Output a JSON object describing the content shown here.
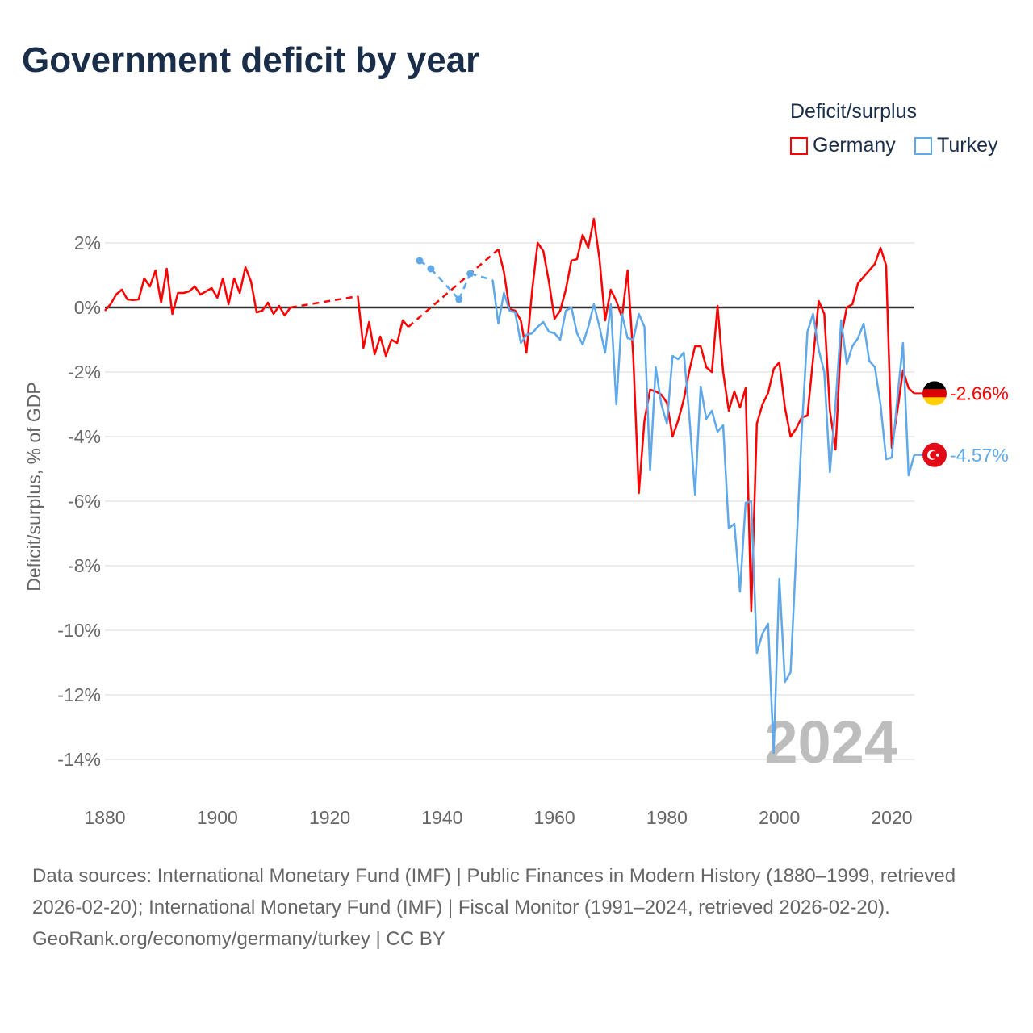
{
  "title": "Government deficit by year",
  "legend": {
    "title": "Deficit/surplus",
    "items": [
      {
        "name": "Germany",
        "color": "#ff0000"
      },
      {
        "name": "Turkey",
        "color": "#5fa8ea"
      }
    ]
  },
  "footer": {
    "sources": "Data sources: International Monetary Fund (IMF) | Public Finances in Modern History (1880–1999, retrieved 2026-02-20); International Monetary Fund (IMF) | Fiscal Monitor (1991–2024, retrieved 2026-02-20).",
    "attribution": "GeoRank.org/economy/germany/turkey | CC BY"
  },
  "chart_data": {
    "type": "line",
    "title": "Government deficit by year",
    "ylabel": "Deficit/surplus, % of GDP",
    "xlabel": "",
    "xlim": [
      1880,
      2024
    ],
    "ylim": [
      -14,
      2
    ],
    "xticks": [
      "1880",
      "1900",
      "1920",
      "1940",
      "1960",
      "1980",
      "2000",
      "2020"
    ],
    "yticks": [
      "2%",
      "0%",
      "-2%",
      "-4%",
      "-6%",
      "-8%",
      "-10%",
      "-12%",
      "-14%"
    ],
    "year_watermark": "2024",
    "end_labels": {
      "Germany": "-2.66%",
      "Turkey": "-4.57%"
    },
    "series": [
      {
        "name": "Germany",
        "color": "#ff0000",
        "points": [
          [
            1880,
            -0.1
          ],
          [
            1881,
            0.1
          ],
          [
            1882,
            0.4
          ],
          [
            1883,
            0.55
          ],
          [
            1884,
            0.25
          ],
          [
            1885,
            0.23
          ],
          [
            1886,
            0.25
          ],
          [
            1887,
            0.9
          ],
          [
            1888,
            0.65
          ],
          [
            1889,
            1.15
          ],
          [
            1890,
            0.15
          ],
          [
            1891,
            1.2
          ],
          [
            1892,
            -0.2
          ],
          [
            1893,
            0.45
          ],
          [
            1894,
            0.45
          ],
          [
            1895,
            0.5
          ],
          [
            1896,
            0.65
          ],
          [
            1897,
            0.4
          ],
          [
            1898,
            0.5
          ],
          [
            1899,
            0.6
          ],
          [
            1900,
            0.3
          ],
          [
            1901,
            0.9
          ],
          [
            1902,
            0.1
          ],
          [
            1903,
            0.9
          ],
          [
            1904,
            0.45
          ],
          [
            1905,
            1.25
          ],
          [
            1906,
            0.8
          ],
          [
            1907,
            -0.15
          ],
          [
            1908,
            -0.1
          ],
          [
            1909,
            0.15
          ],
          [
            1910,
            -0.2
          ],
          [
            1911,
            0.05
          ],
          [
            1912,
            -0.25
          ],
          [
            1913,
            0.0
          ],
          [
            1925,
            0.35
          ],
          [
            1926,
            -1.25
          ],
          [
            1927,
            -0.45
          ],
          [
            1928,
            -1.45
          ],
          [
            1929,
            -0.9
          ],
          [
            1930,
            -1.5
          ],
          [
            1931,
            -1.0
          ],
          [
            1932,
            -1.1
          ],
          [
            1933,
            -0.4
          ],
          [
            1934,
            -0.6
          ],
          [
            1950,
            1.8
          ],
          [
            1951,
            1.1
          ],
          [
            1952,
            -0.05
          ],
          [
            1953,
            -0.1
          ],
          [
            1954,
            -0.4
          ],
          [
            1955,
            -1.4
          ],
          [
            1956,
            0.5
          ],
          [
            1957,
            2.0
          ],
          [
            1958,
            1.75
          ],
          [
            1959,
            0.8
          ],
          [
            1960,
            -0.35
          ],
          [
            1961,
            -0.1
          ],
          [
            1962,
            0.55
          ],
          [
            1963,
            1.45
          ],
          [
            1964,
            1.5
          ],
          [
            1965,
            2.25
          ],
          [
            1966,
            1.85
          ],
          [
            1967,
            2.75
          ],
          [
            1968,
            1.5
          ],
          [
            1969,
            -0.4
          ],
          [
            1970,
            0.55
          ],
          [
            1971,
            0.2
          ],
          [
            1972,
            -0.3
          ],
          [
            1973,
            1.15
          ],
          [
            1974,
            -1.5
          ],
          [
            1975,
            -5.75
          ],
          [
            1976,
            -3.5
          ],
          [
            1977,
            -2.55
          ],
          [
            1978,
            -2.6
          ],
          [
            1979,
            -2.7
          ],
          [
            1980,
            -2.95
          ],
          [
            1981,
            -4.0
          ],
          [
            1982,
            -3.5
          ],
          [
            1983,
            -2.85
          ],
          [
            1984,
            -1.95
          ],
          [
            1985,
            -1.2
          ],
          [
            1986,
            -1.2
          ],
          [
            1987,
            -1.85
          ],
          [
            1988,
            -2.0
          ],
          [
            1989,
            0.05
          ],
          [
            1990,
            -2.0
          ],
          [
            1991,
            -3.2
          ],
          [
            1992,
            -2.6
          ],
          [
            1993,
            -3.1
          ],
          [
            1994,
            -2.5
          ],
          [
            1995,
            -9.4
          ],
          [
            1996,
            -3.6
          ],
          [
            1997,
            -3.0
          ],
          [
            1998,
            -2.65
          ],
          [
            1999,
            -1.9
          ],
          [
            2000,
            -1.7
          ],
          [
            2001,
            -3.1
          ],
          [
            2002,
            -4.0
          ],
          [
            2003,
            -3.75
          ],
          [
            2004,
            -3.4
          ],
          [
            2005,
            -3.35
          ],
          [
            2006,
            -1.6
          ],
          [
            2007,
            0.2
          ],
          [
            2008,
            -0.2
          ],
          [
            2009,
            -3.2
          ],
          [
            2010,
            -4.4
          ],
          [
            2011,
            -0.9
          ],
          [
            2012,
            0.0
          ],
          [
            2013,
            0.1
          ],
          [
            2014,
            0.75
          ],
          [
            2015,
            0.95
          ],
          [
            2016,
            1.15
          ],
          [
            2017,
            1.35
          ],
          [
            2018,
            1.85
          ],
          [
            2019,
            1.3
          ],
          [
            2020,
            -4.35
          ],
          [
            2021,
            -3.2
          ],
          [
            2022,
            -1.95
          ],
          [
            2023,
            -2.5
          ],
          [
            2024,
            -2.66
          ]
        ]
      },
      {
        "name": "Turkey",
        "color": "#5fa8ea",
        "points": [
          [
            1936,
            1.45
          ],
          [
            1938,
            1.2
          ],
          [
            1943,
            0.25
          ],
          [
            1945,
            1.05
          ],
          [
            1949,
            0.85
          ],
          [
            1950,
            -0.5
          ],
          [
            1951,
            0.45
          ],
          [
            1952,
            -0.1
          ],
          [
            1953,
            -0.15
          ],
          [
            1954,
            -1.1
          ],
          [
            1955,
            -0.85
          ],
          [
            1956,
            -0.8
          ],
          [
            1957,
            -0.6
          ],
          [
            1958,
            -0.45
          ],
          [
            1959,
            -0.75
          ],
          [
            1960,
            -0.8
          ],
          [
            1961,
            -1.0
          ],
          [
            1962,
            -0.1
          ],
          [
            1963,
            0.0
          ],
          [
            1964,
            -0.8
          ],
          [
            1965,
            -1.15
          ],
          [
            1966,
            -0.6
          ],
          [
            1967,
            0.1
          ],
          [
            1968,
            -0.6
          ],
          [
            1969,
            -1.4
          ],
          [
            1970,
            0.1
          ],
          [
            1971,
            -3.0
          ],
          [
            1972,
            -0.2
          ],
          [
            1973,
            -0.95
          ],
          [
            1974,
            -1.0
          ],
          [
            1975,
            -0.2
          ],
          [
            1976,
            -0.6
          ],
          [
            1977,
            -5.05
          ],
          [
            1978,
            -1.85
          ],
          [
            1979,
            -3.0
          ],
          [
            1980,
            -3.6
          ],
          [
            1981,
            -1.5
          ],
          [
            1982,
            -1.6
          ],
          [
            1983,
            -1.4
          ],
          [
            1984,
            -3.4
          ],
          [
            1985,
            -5.8
          ],
          [
            1986,
            -2.45
          ],
          [
            1987,
            -3.45
          ],
          [
            1988,
            -3.2
          ],
          [
            1989,
            -3.85
          ],
          [
            1990,
            -3.65
          ],
          [
            1991,
            -6.85
          ],
          [
            1992,
            -6.7
          ],
          [
            1993,
            -8.8
          ],
          [
            1994,
            -6.05
          ],
          [
            1995,
            -6.0
          ],
          [
            1996,
            -10.7
          ],
          [
            1997,
            -10.1
          ],
          [
            1998,
            -9.8
          ],
          [
            1999,
            -13.8
          ],
          [
            2000,
            -8.4
          ],
          [
            2001,
            -11.6
          ],
          [
            2002,
            -11.3
          ],
          [
            2003,
            -7.6
          ],
          [
            2004,
            -3.8
          ],
          [
            2005,
            -0.75
          ],
          [
            2006,
            -0.2
          ],
          [
            2007,
            -1.3
          ],
          [
            2008,
            -2.0
          ],
          [
            2009,
            -5.1
          ],
          [
            2010,
            -3.0
          ],
          [
            2011,
            -0.4
          ],
          [
            2012,
            -1.75
          ],
          [
            2013,
            -1.2
          ],
          [
            2014,
            -0.95
          ],
          [
            2015,
            -0.5
          ],
          [
            2016,
            -1.65
          ],
          [
            2017,
            -1.85
          ],
          [
            2018,
            -3.0
          ],
          [
            2019,
            -4.7
          ],
          [
            2020,
            -4.65
          ],
          [
            2021,
            -2.8
          ],
          [
            2022,
            -1.1
          ],
          [
            2023,
            -5.2
          ],
          [
            2024,
            -4.57
          ]
        ]
      }
    ]
  }
}
